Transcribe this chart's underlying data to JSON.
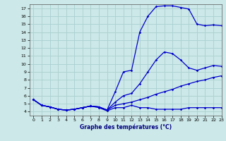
{
  "title": "Graphe des températures (°C)",
  "background_color": "#cce8e8",
  "grid_color": "#aacfcf",
  "line_color": "#0000cc",
  "xlim": [
    -0.5,
    23
  ],
  "ylim": [
    3.5,
    17.5
  ],
  "xticks": [
    0,
    1,
    2,
    3,
    4,
    5,
    6,
    7,
    8,
    9,
    10,
    11,
    12,
    13,
    14,
    15,
    16,
    17,
    18,
    19,
    20,
    21,
    22,
    23
  ],
  "yticks": [
    4,
    5,
    6,
    7,
    8,
    9,
    10,
    11,
    12,
    13,
    14,
    15,
    16,
    17
  ],
  "line1_x": [
    0,
    1,
    2,
    3,
    4,
    5,
    6,
    7,
    8,
    9,
    10,
    11,
    12,
    13,
    14,
    15,
    16,
    17,
    18,
    19,
    20,
    21,
    22,
    23
  ],
  "line1_y": [
    5.5,
    4.8,
    4.6,
    4.3,
    4.2,
    4.3,
    4.5,
    4.7,
    4.6,
    4.2,
    6.5,
    9.0,
    9.2,
    14.0,
    16.0,
    17.2,
    17.3,
    17.3,
    17.1,
    16.9,
    15.0,
    14.8,
    14.9,
    14.8
  ],
  "line2_x": [
    0,
    1,
    2,
    3,
    4,
    5,
    6,
    7,
    8,
    9,
    10,
    11,
    12,
    13,
    14,
    15,
    16,
    17,
    18,
    19,
    20,
    21,
    22,
    23
  ],
  "line2_y": [
    5.5,
    4.8,
    4.6,
    4.3,
    4.2,
    4.3,
    4.5,
    4.7,
    4.6,
    4.2,
    5.2,
    6.0,
    6.3,
    7.5,
    9.0,
    10.5,
    11.5,
    11.3,
    10.5,
    9.5,
    9.2,
    9.5,
    9.8,
    9.7
  ],
  "line3_x": [
    0,
    1,
    2,
    3,
    4,
    5,
    6,
    7,
    8,
    9,
    10,
    11,
    12,
    13,
    14,
    15,
    16,
    17,
    18,
    19,
    20,
    21,
    22,
    23
  ],
  "line3_y": [
    5.5,
    4.8,
    4.6,
    4.3,
    4.2,
    4.3,
    4.5,
    4.7,
    4.6,
    4.2,
    4.8,
    5.0,
    5.2,
    5.5,
    5.8,
    6.2,
    6.5,
    6.8,
    7.2,
    7.5,
    7.8,
    8.0,
    8.3,
    8.5
  ],
  "line4_x": [
    0,
    1,
    2,
    3,
    4,
    5,
    6,
    7,
    8,
    9,
    10,
    11,
    12,
    13,
    14,
    15,
    16,
    17,
    18,
    19,
    20,
    21,
    22,
    23
  ],
  "line4_y": [
    5.5,
    4.8,
    4.6,
    4.3,
    4.2,
    4.3,
    4.5,
    4.7,
    4.5,
    4.1,
    4.5,
    4.5,
    4.8,
    4.5,
    4.5,
    4.3,
    4.3,
    4.3,
    4.3,
    4.5,
    4.5,
    4.5,
    4.5,
    4.5
  ]
}
